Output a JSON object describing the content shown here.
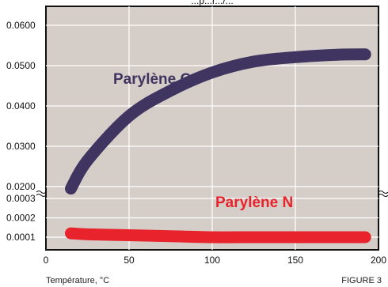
{
  "chart_data": {
    "type": "line",
    "title_partial": "...p...r.../...",
    "xlabel": "Température, °C",
    "figure_label": "FIGURE 3",
    "xlim": [
      0,
      200
    ],
    "x_ticks": [
      "0",
      "50",
      "100",
      "150",
      "200"
    ],
    "upper_panel": {
      "ylim": [
        0.0195,
        0.0675
      ],
      "y_ticks": [
        "0.0200",
        "0.0300",
        "0.0400",
        "0.0500",
        "0.0600"
      ]
    },
    "lower_panel": {
      "ylim": [
        0.0,
        0.0003
      ],
      "y_ticks": [
        "0.0001",
        "0.0002",
        "0.0003"
      ]
    },
    "axis_break": true,
    "grid": true,
    "series": [
      {
        "name": "Parylène C",
        "panel": "upper",
        "color": "#3f3560",
        "x": [
          15,
          25,
          50,
          75,
          100,
          125,
          150,
          175,
          192
        ],
        "y": [
          0.0195,
          0.0265,
          0.0375,
          0.0438,
          0.0483,
          0.051,
          0.0521,
          0.0527,
          0.0528
        ]
      },
      {
        "name": "Parylène N",
        "panel": "lower",
        "color": "#e8232c",
        "x": [
          15,
          25,
          50,
          75,
          100,
          125,
          150,
          175,
          192
        ],
        "y": [
          0.00012,
          0.000115,
          0.00011,
          0.000105,
          0.0001,
          0.0001,
          0.0001,
          0.0001,
          0.0001
        ]
      }
    ],
    "colors": {
      "plot_bg": "#d4cdc8",
      "grid": "#ffffff"
    }
  }
}
